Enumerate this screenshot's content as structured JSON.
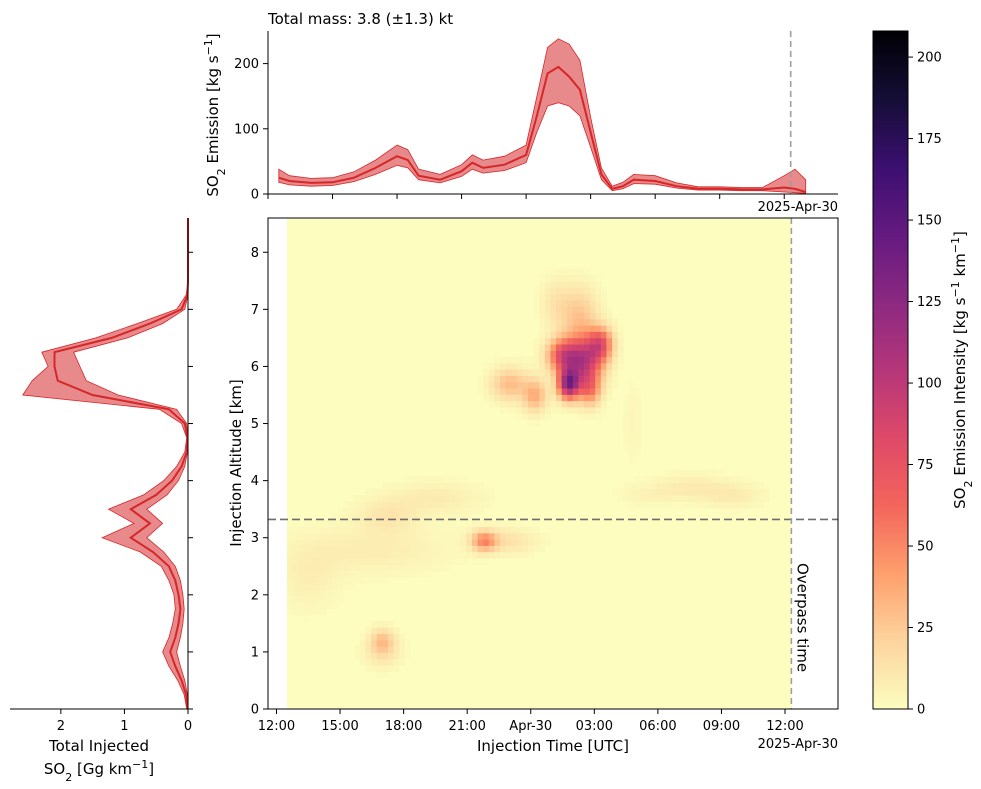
{
  "colors": {
    "series": "#d62728",
    "band": "#e8898b",
    "guide": "#9e9e9e",
    "heat_bg": "#fcfdbf",
    "colormap": [
      "#fcfdbf",
      "#fdd49e",
      "#fe9f6d",
      "#f3655c",
      "#de4968",
      "#b5367a",
      "#8c2981",
      "#641a80",
      "#3b0f70",
      "#140e36",
      "#000004"
    ]
  },
  "chart_data": [
    {
      "panel": "top",
      "type": "area",
      "title": "Total mass: 3.8 (±1.3) kt",
      "ylabel_parts": {
        "main": "SO",
        "sub": "2",
        "rest": " Emission [kg s",
        "sup": "−1",
        "close": "]"
      },
      "ylim": [
        0,
        250
      ],
      "yticks": [
        0,
        100,
        200
      ],
      "xlim": [
        12,
        38.5
      ],
      "date_label": "2025-Apr-30",
      "x": [
        12.5,
        13,
        14,
        15,
        16,
        17,
        18,
        18.5,
        19,
        20,
        21,
        21.5,
        22,
        23,
        24,
        24.5,
        25,
        25.5,
        26,
        26.5,
        27,
        27.5,
        28,
        28.5,
        29,
        30,
        31,
        32,
        33,
        34,
        35,
        36,
        36.5,
        37
      ],
      "y": [
        25,
        20,
        17,
        18,
        25,
        40,
        58,
        52,
        28,
        22,
        35,
        48,
        40,
        45,
        60,
        120,
        185,
        195,
        180,
        160,
        95,
        30,
        8,
        12,
        22,
        20,
        12,
        8,
        8,
        7,
        7,
        10,
        8,
        3
      ],
      "y_low": [
        18,
        14,
        12,
        13,
        19,
        30,
        44,
        40,
        22,
        17,
        27,
        38,
        32,
        36,
        48,
        95,
        135,
        140,
        135,
        120,
        72,
        22,
        5,
        8,
        16,
        15,
        9,
        6,
        6,
        5,
        5,
        3,
        2,
        1
      ],
      "y_high": [
        38,
        28,
        24,
        25,
        34,
        52,
        75,
        68,
        38,
        30,
        45,
        60,
        52,
        58,
        75,
        150,
        225,
        238,
        230,
        205,
        118,
        40,
        12,
        18,
        30,
        28,
        17,
        11,
        11,
        10,
        10,
        28,
        38,
        22
      ]
    },
    {
      "panel": "left",
      "type": "area",
      "xlabel_line1": "Total Injected",
      "xlabel_parts": {
        "main": "SO",
        "sub": "2",
        "rest": " [Gg km",
        "sup": "−1",
        "close": "]"
      },
      "xticks": [
        2,
        1,
        0
      ],
      "xlim": [
        2.8,
        0
      ],
      "ylim": [
        0,
        8.6
      ],
      "y": [
        0,
        0.25,
        0.5,
        0.75,
        1,
        1.25,
        1.5,
        1.75,
        2,
        2.25,
        2.5,
        2.75,
        3,
        3.25,
        3.5,
        3.75,
        4,
        4.25,
        4.5,
        4.75,
        5,
        5.25,
        5.5,
        5.75,
        6,
        6.25,
        6.5,
        6.75,
        7,
        7.25,
        7.5,
        8.6
      ],
      "x": [
        0.01,
        0.03,
        0.1,
        0.2,
        0.28,
        0.2,
        0.15,
        0.12,
        0.15,
        0.2,
        0.3,
        0.55,
        0.9,
        0.6,
        0.9,
        0.5,
        0.25,
        0.1,
        0.02,
        0.01,
        0.05,
        0.3,
        1.5,
        2.05,
        2.1,
        2.1,
        1.2,
        0.6,
        0.1,
        0.01,
        0,
        0
      ],
      "x_low": [
        0.0,
        0.01,
        0.05,
        0.12,
        0.18,
        0.12,
        0.08,
        0.06,
        0.08,
        0.12,
        0.2,
        0.38,
        0.65,
        0.4,
        0.65,
        0.33,
        0.15,
        0.05,
        0.01,
        0.0,
        0.02,
        0.18,
        1.1,
        1.6,
        1.7,
        1.8,
        0.95,
        0.4,
        0.05,
        0.0,
        0,
        0
      ],
      "x_high": [
        0.02,
        0.06,
        0.16,
        0.3,
        0.4,
        0.3,
        0.24,
        0.2,
        0.22,
        0.3,
        0.42,
        0.75,
        1.35,
        0.85,
        1.25,
        0.7,
        0.38,
        0.18,
        0.05,
        0.02,
        0.1,
        0.45,
        2.6,
        2.45,
        2.2,
        2.3,
        1.45,
        0.8,
        0.18,
        0.03,
        0,
        0
      ]
    },
    {
      "panel": "main",
      "type": "heatmap",
      "xlabel": "Injection Time [UTC]",
      "ylabel": "Injection Altitude [km]",
      "xticks": [
        {
          "x": 12,
          "label": "12:00"
        },
        {
          "x": 15,
          "label": "15:00"
        },
        {
          "x": 18,
          "label": "18:00"
        },
        {
          "x": 21,
          "label": "21:00"
        },
        {
          "x": 24,
          "label": "Apr-30"
        },
        {
          "x": 27,
          "label": "03:00"
        },
        {
          "x": 30,
          "label": "06:00"
        },
        {
          "x": 33,
          "label": "09:00"
        },
        {
          "x": 36,
          "label": "12:00"
        }
      ],
      "date_label": "2025-Apr-30",
      "yticks": [
        0,
        1,
        2,
        3,
        4,
        5,
        6,
        7,
        8
      ],
      "xlim": [
        11.6,
        38.5
      ],
      "ylim": [
        0,
        8.6
      ],
      "data_extent": {
        "x": [
          12.5,
          36.3
        ],
        "y": [
          0,
          8.6
        ]
      },
      "overpass_time": 36.3,
      "overpass_label": "Overpass time",
      "plume_altitude": 3.32,
      "blobs": [
        {
          "x": 25.8,
          "y": 5.7,
          "sx": 0.35,
          "sy": 0.18,
          "v": 120
        },
        {
          "x": 26.5,
          "y": 6.1,
          "sx": 0.6,
          "sy": 0.3,
          "v": 95
        },
        {
          "x": 25.5,
          "y": 6.2,
          "sx": 0.5,
          "sy": 0.2,
          "v": 70
        },
        {
          "x": 27.3,
          "y": 6.4,
          "sx": 0.4,
          "sy": 0.2,
          "v": 65
        },
        {
          "x": 26.8,
          "y": 5.6,
          "sx": 0.35,
          "sy": 0.2,
          "v": 45
        },
        {
          "x": 26.3,
          "y": 6.9,
          "sx": 0.6,
          "sy": 0.35,
          "v": 25
        },
        {
          "x": 25.2,
          "y": 7.1,
          "sx": 0.5,
          "sy": 0.3,
          "v": 12
        },
        {
          "x": 23.0,
          "y": 5.7,
          "sx": 0.6,
          "sy": 0.2,
          "v": 30
        },
        {
          "x": 24.2,
          "y": 5.5,
          "sx": 0.4,
          "sy": 0.2,
          "v": 35
        },
        {
          "x": 21.8,
          "y": 2.95,
          "sx": 0.4,
          "sy": 0.12,
          "v": 45
        },
        {
          "x": 22.8,
          "y": 2.95,
          "sx": 1.0,
          "sy": 0.15,
          "v": 14
        },
        {
          "x": 19.5,
          "y": 3.7,
          "sx": 1.5,
          "sy": 0.2,
          "v": 9
        },
        {
          "x": 17.2,
          "y": 3.4,
          "sx": 1.0,
          "sy": 0.2,
          "v": 11
        },
        {
          "x": 16.5,
          "y": 2.8,
          "sx": 2.5,
          "sy": 0.3,
          "v": 8
        },
        {
          "x": 13.5,
          "y": 2.3,
          "sx": 1.0,
          "sy": 0.4,
          "v": 7
        },
        {
          "x": 17.0,
          "y": 1.2,
          "sx": 0.4,
          "sy": 0.15,
          "v": 25
        },
        {
          "x": 17.0,
          "y": 1.0,
          "sx": 0.6,
          "sy": 0.2,
          "v": 12
        },
        {
          "x": 31.5,
          "y": 3.9,
          "sx": 1.2,
          "sy": 0.15,
          "v": 9
        },
        {
          "x": 33.5,
          "y": 3.75,
          "sx": 1.0,
          "sy": 0.15,
          "v": 9
        },
        {
          "x": 29.5,
          "y": 3.75,
          "sx": 1.0,
          "sy": 0.12,
          "v": 5
        },
        {
          "x": 28.8,
          "y": 5.0,
          "sx": 0.3,
          "sy": 0.5,
          "v": 4
        }
      ]
    },
    {
      "panel": "colorbar",
      "type": "heatmap",
      "label_parts": {
        "main": "SO",
        "sub": "2",
        "rest": " Emission Intensity [kg s",
        "sup": "−1",
        "mid": " km",
        "sup2": "−1",
        "close": "]"
      },
      "ticks": [
        0,
        25,
        50,
        75,
        100,
        125,
        150,
        175,
        200
      ],
      "vlim": [
        0,
        208
      ]
    }
  ]
}
